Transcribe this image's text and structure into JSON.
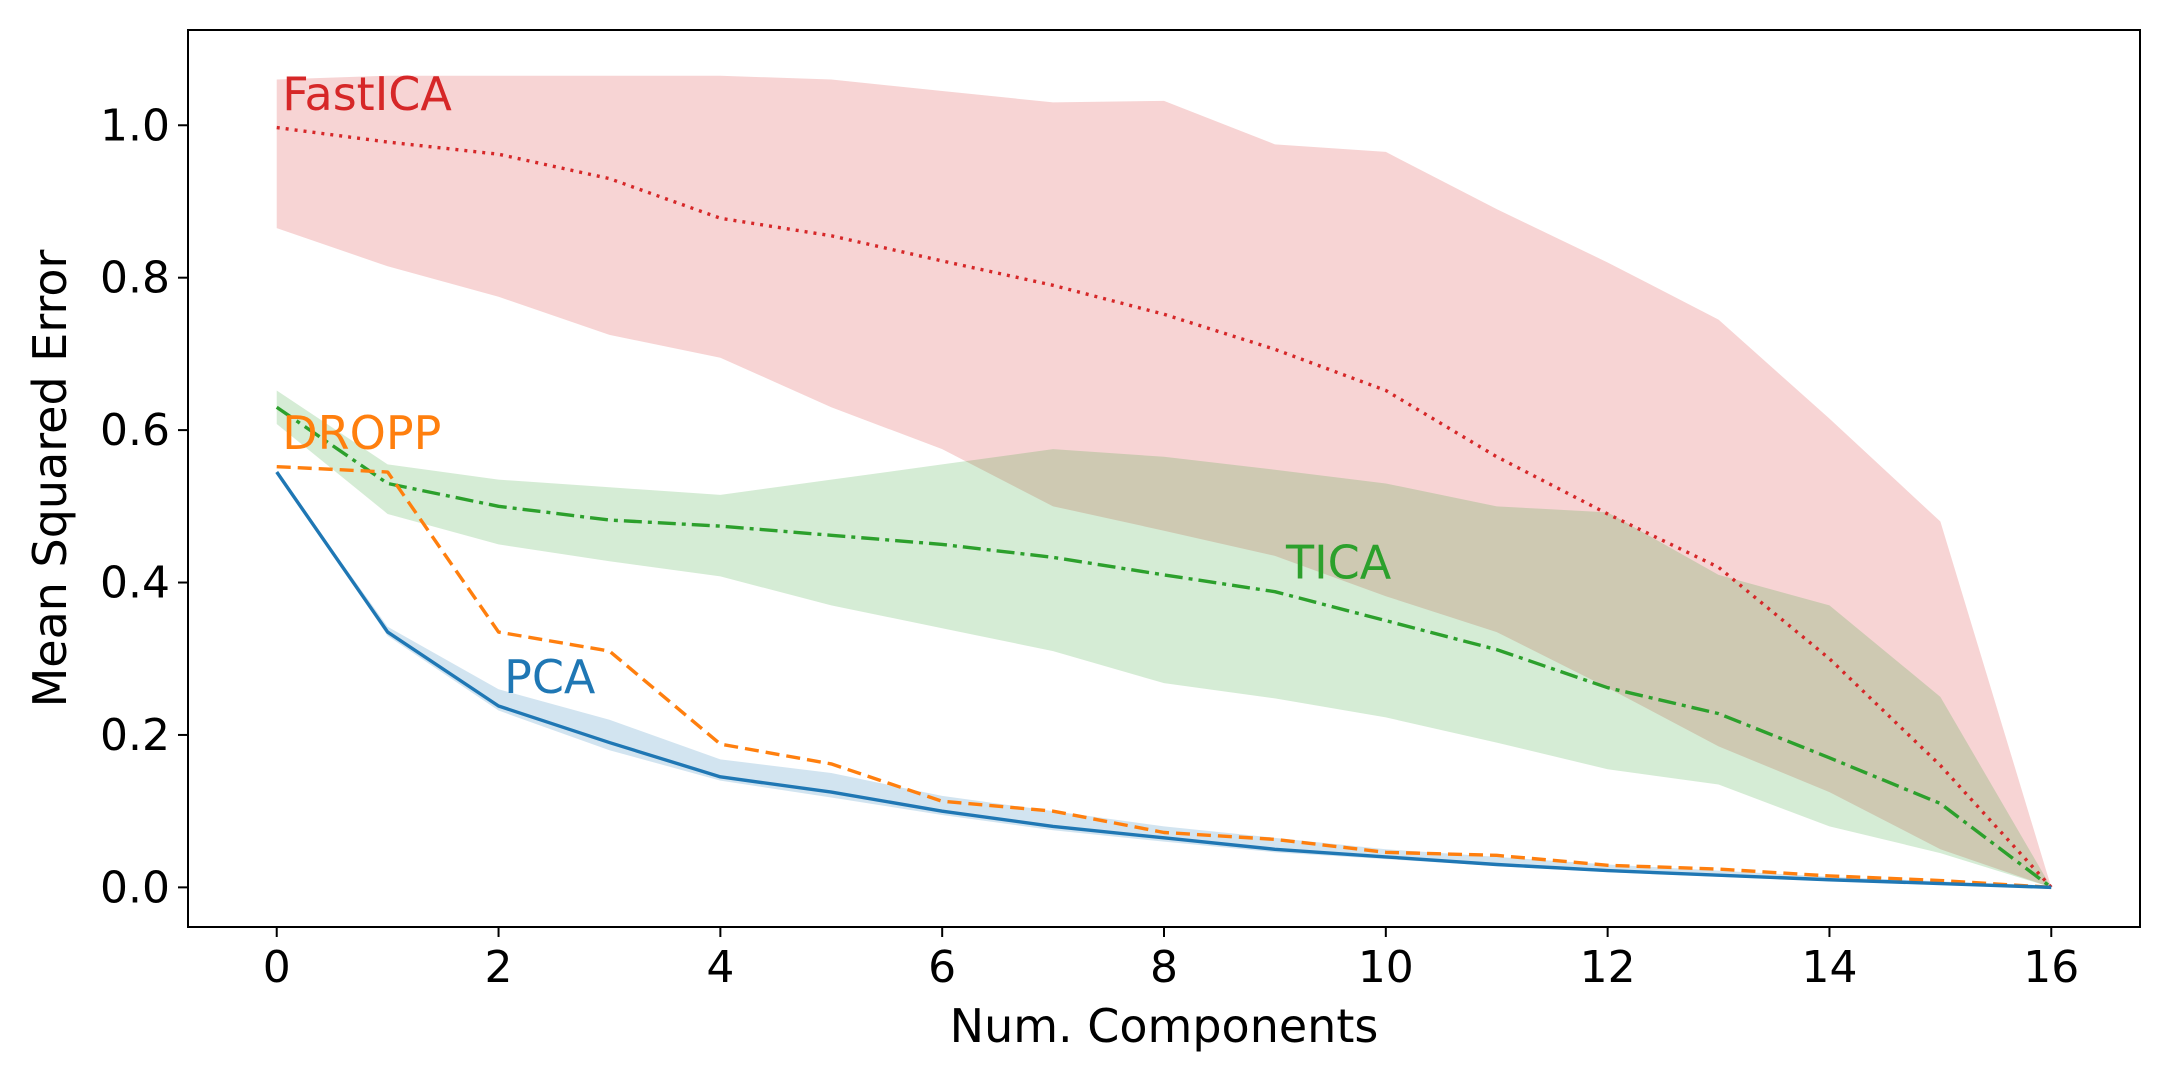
{
  "chart_data": {
    "type": "line",
    "xlabel": "Num. Components",
    "ylabel": "Mean Squared Error",
    "xlim": [
      -0.8,
      16.8
    ],
    "ylim": [
      -0.052,
      1.125
    ],
    "xticks": [
      0,
      2,
      4,
      6,
      8,
      10,
      12,
      14,
      16
    ],
    "yticks": [
      0.0,
      0.2,
      0.4,
      0.6,
      0.8,
      1.0
    ],
    "ytick_labels": [
      "0.0",
      "0.2",
      "0.4",
      "0.6",
      "0.8",
      "1.0"
    ],
    "grid": false,
    "legend": "none (inline series labels)",
    "series": [
      {
        "name": "FastICA",
        "color": "#d62728",
        "dash": "dotted",
        "x": [
          0,
          1,
          2,
          3,
          4,
          5,
          6,
          7,
          8,
          9,
          10,
          11,
          12,
          13,
          14,
          15,
          16
        ],
        "y": [
          0.997,
          0.978,
          0.962,
          0.93,
          0.878,
          0.855,
          0.822,
          0.79,
          0.752,
          0.706,
          0.652,
          0.565,
          0.49,
          0.42,
          0.3,
          0.16,
          0.0
        ],
        "band_upper": [
          1.06,
          1.065,
          1.065,
          1.065,
          1.065,
          1.06,
          1.045,
          1.03,
          1.032,
          0.975,
          0.965,
          0.89,
          0.82,
          0.745,
          0.615,
          0.48,
          0.0
        ],
        "band_lower": [
          0.865,
          0.815,
          0.775,
          0.725,
          0.695,
          0.63,
          0.575,
          0.5,
          0.468,
          0.435,
          0.382,
          0.335,
          0.262,
          0.185,
          0.125,
          0.05,
          0.0
        ]
      },
      {
        "name": "TICA",
        "color": "#2ca02c",
        "dash": "dashdot",
        "x": [
          0,
          1,
          2,
          3,
          4,
          5,
          6,
          7,
          8,
          9,
          10,
          11,
          12,
          13,
          14,
          15,
          16
        ],
        "y": [
          0.63,
          0.53,
          0.5,
          0.482,
          0.474,
          0.462,
          0.45,
          0.433,
          0.41,
          0.388,
          0.35,
          0.312,
          0.262,
          0.228,
          0.17,
          0.11,
          0.0
        ],
        "band_upper": [
          0.652,
          0.555,
          0.535,
          0.525,
          0.515,
          0.535,
          0.555,
          0.575,
          0.565,
          0.548,
          0.53,
          0.5,
          0.492,
          0.41,
          0.37,
          0.25,
          0.0
        ],
        "band_lower": [
          0.608,
          0.49,
          0.45,
          0.428,
          0.408,
          0.37,
          0.34,
          0.31,
          0.268,
          0.248,
          0.223,
          0.19,
          0.155,
          0.135,
          0.08,
          0.045,
          0.0
        ]
      },
      {
        "name": "DROPP",
        "color": "#ff7f0e",
        "dash": "dashed",
        "x": [
          0,
          1,
          2,
          3,
          4,
          5,
          6,
          7,
          8,
          9,
          10,
          11,
          12,
          13,
          14,
          15,
          16
        ],
        "y": [
          0.552,
          0.545,
          0.335,
          0.31,
          0.188,
          0.162,
          0.113,
          0.1,
          0.072,
          0.063,
          0.046,
          0.042,
          0.029,
          0.024,
          0.015,
          0.009,
          0.0
        ]
      },
      {
        "name": "PCA",
        "color": "#1f77b4",
        "dash": "solid",
        "x": [
          0,
          1,
          2,
          3,
          4,
          5,
          6,
          7,
          8,
          9,
          10,
          11,
          12,
          13,
          14,
          15,
          16
        ],
        "y": [
          0.545,
          0.335,
          0.238,
          0.19,
          0.145,
          0.125,
          0.1,
          0.08,
          0.065,
          0.05,
          0.04,
          0.03,
          0.022,
          0.016,
          0.01,
          0.005,
          0.0
        ],
        "band_upper": [
          0.545,
          0.342,
          0.26,
          0.22,
          0.168,
          0.15,
          0.12,
          0.1,
          0.08,
          0.065,
          0.05,
          0.04,
          0.03,
          0.022,
          0.014,
          0.008,
          0.0
        ],
        "band_lower": [
          0.545,
          0.33,
          0.232,
          0.18,
          0.14,
          0.118,
          0.095,
          0.075,
          0.06,
          0.046,
          0.037,
          0.028,
          0.02,
          0.014,
          0.008,
          0.004,
          0.0
        ]
      }
    ],
    "annotations": [
      {
        "text": "FastICA",
        "series": "FastICA",
        "x": 0.05,
        "y": 1.02
      },
      {
        "text": "DROPP",
        "series": "DROPP",
        "x": 0.05,
        "y": 0.575
      },
      {
        "text": "TICA",
        "series": "TICA",
        "x": 9.1,
        "y": 0.405
      },
      {
        "text": "PCA",
        "series": "PCA",
        "x": 2.05,
        "y": 0.255
      }
    ]
  }
}
